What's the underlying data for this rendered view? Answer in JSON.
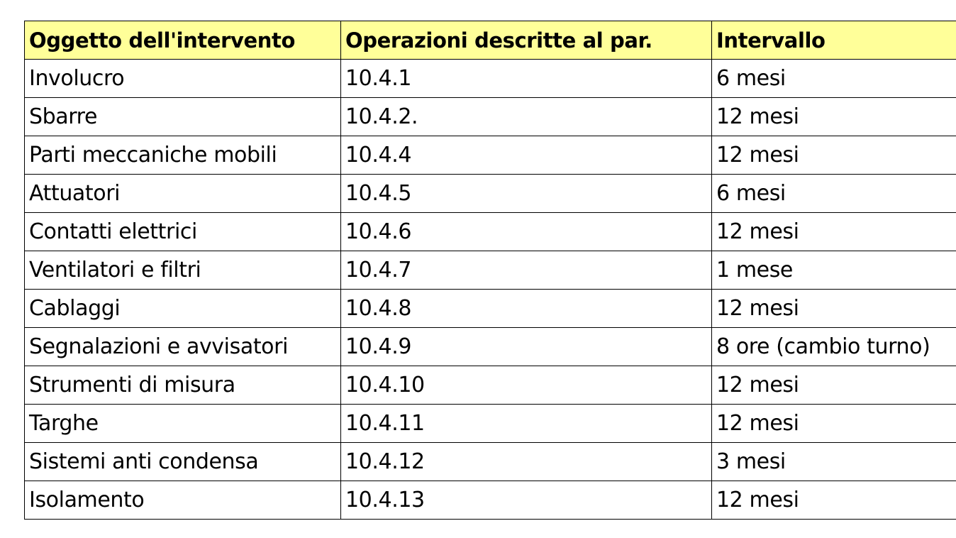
{
  "table": {
    "headers": [
      "Oggetto dell'intervento",
      "Operazioni descritte al par.",
      "Intervallo"
    ],
    "rows": [
      [
        "Involucro",
        "10.4.1",
        "6 mesi"
      ],
      [
        "Sbarre",
        "10.4.2.",
        "12 mesi"
      ],
      [
        "Parti meccaniche mobili",
        "10.4.4",
        "12 mesi"
      ],
      [
        "Attuatori",
        "10.4.5",
        "6 mesi"
      ],
      [
        "Contatti elettrici",
        "10.4.6",
        "12 mesi"
      ],
      [
        "Ventilatori e filtri",
        "10.4.7",
        "1 mese"
      ],
      [
        "Cablaggi",
        "10.4.8",
        "12 mesi"
      ],
      [
        "Segnalazioni e avvisatori",
        "10.4.9",
        "8 ore (cambio turno)"
      ],
      [
        "Strumenti di misura",
        "10.4.10",
        "12 mesi"
      ],
      [
        "Targhe",
        "10.4.11",
        "12 mesi"
      ],
      [
        "Sistemi anti condensa",
        "10.4.12",
        "3 mesi"
      ],
      [
        "Isolamento",
        "10.4.13",
        "12 mesi"
      ]
    ]
  },
  "colors": {
    "header_background": "#ffff99",
    "border": "#000000"
  }
}
